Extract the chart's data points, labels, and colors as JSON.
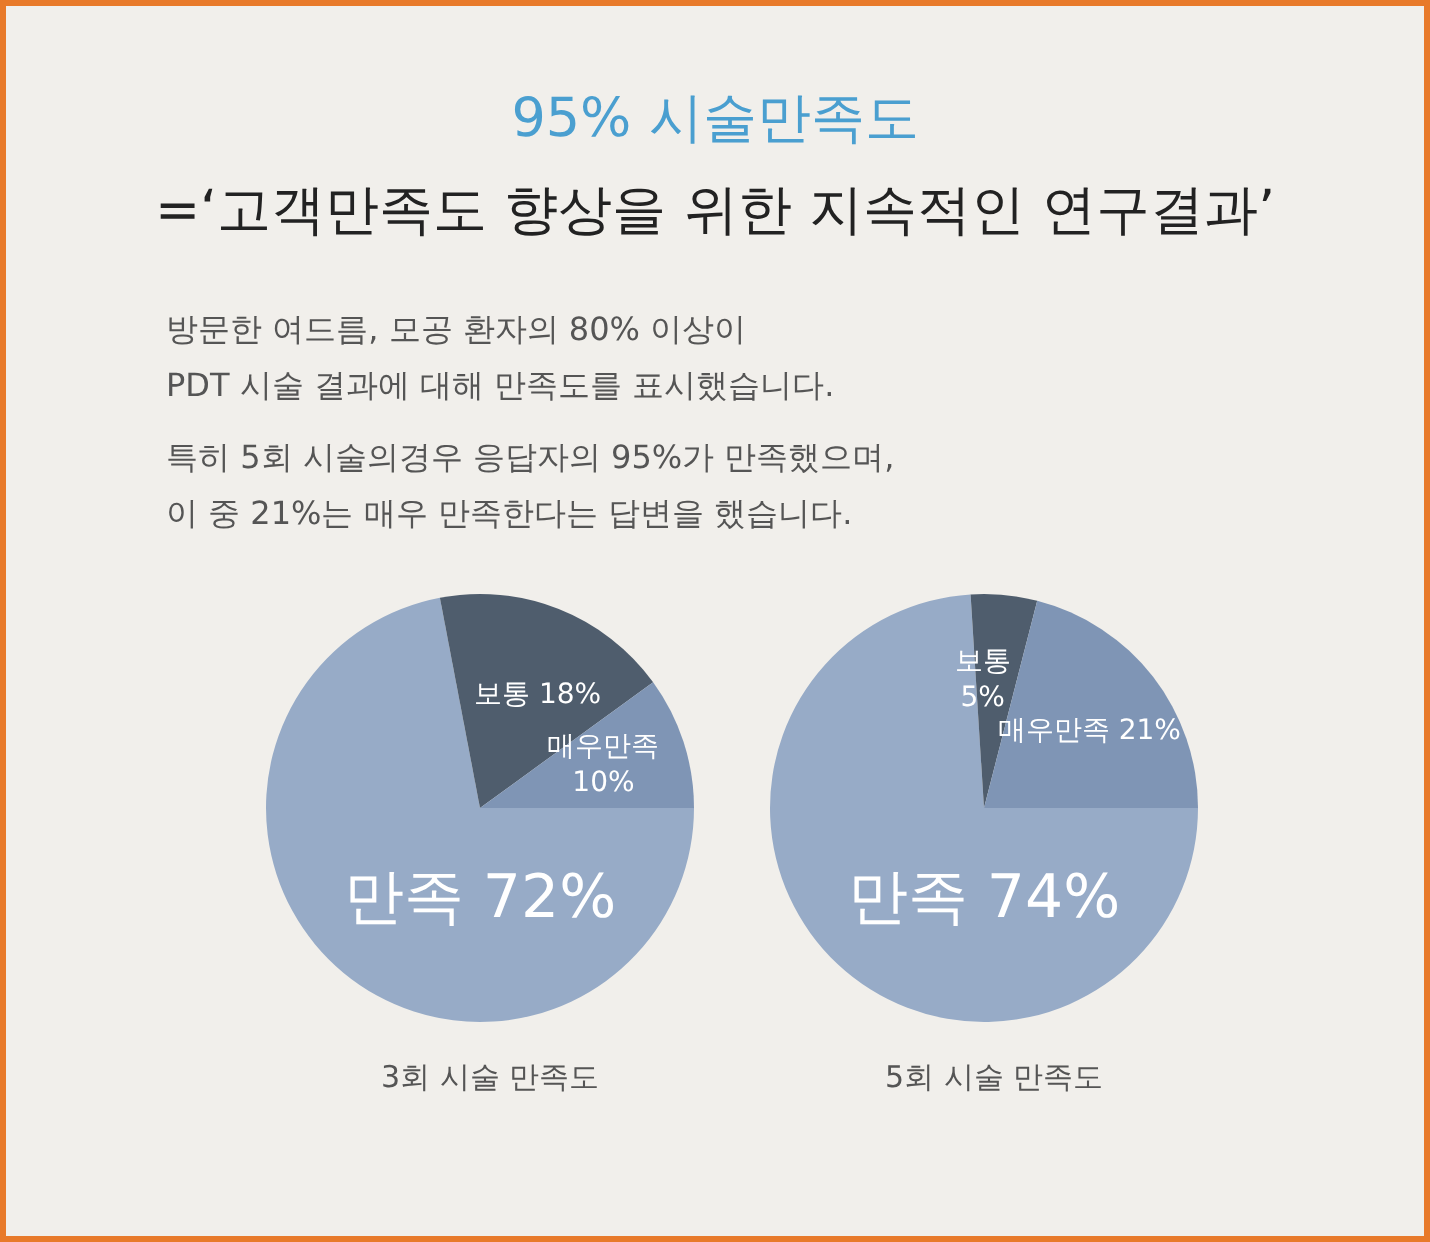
{
  "chart_data": [
    {
      "type": "pie",
      "title": "95% 시술만족도",
      "subtitle": "=‘고객만족도 향상을 위한 지속적인 연구결과’",
      "annotations": [
        "방문한 여드름, 모공 환자의 80% 이상이\nPDT 시술 결과에 대해 만족도를 표시했습니다.",
        "특히 5회 시술의경우 응답자의 95%가 만족했으며,\n이 중 21%는 매우 만족한다는 답변을 했습니다."
      ],
      "xlabel": "3회 시술 만족도",
      "categories": [
        "만족",
        "보통",
        "매우만족"
      ],
      "values": [
        72,
        18,
        10
      ],
      "value_labels": [
        "72%",
        "18%",
        "10%"
      ],
      "colors": [
        "#97abc7",
        "#4f5d6d",
        "#7f95b5"
      ],
      "legend": false
    },
    {
      "type": "pie",
      "xlabel": "5회 시술 만족도",
      "categories": [
        "만족",
        "보통",
        "매우만족"
      ],
      "values": [
        74,
        5,
        21
      ],
      "value_labels": [
        "74%",
        "5%",
        "21%"
      ],
      "colors": [
        "#97abc7",
        "#4f5d6d",
        "#7f95b5"
      ],
      "legend": false
    }
  ]
}
